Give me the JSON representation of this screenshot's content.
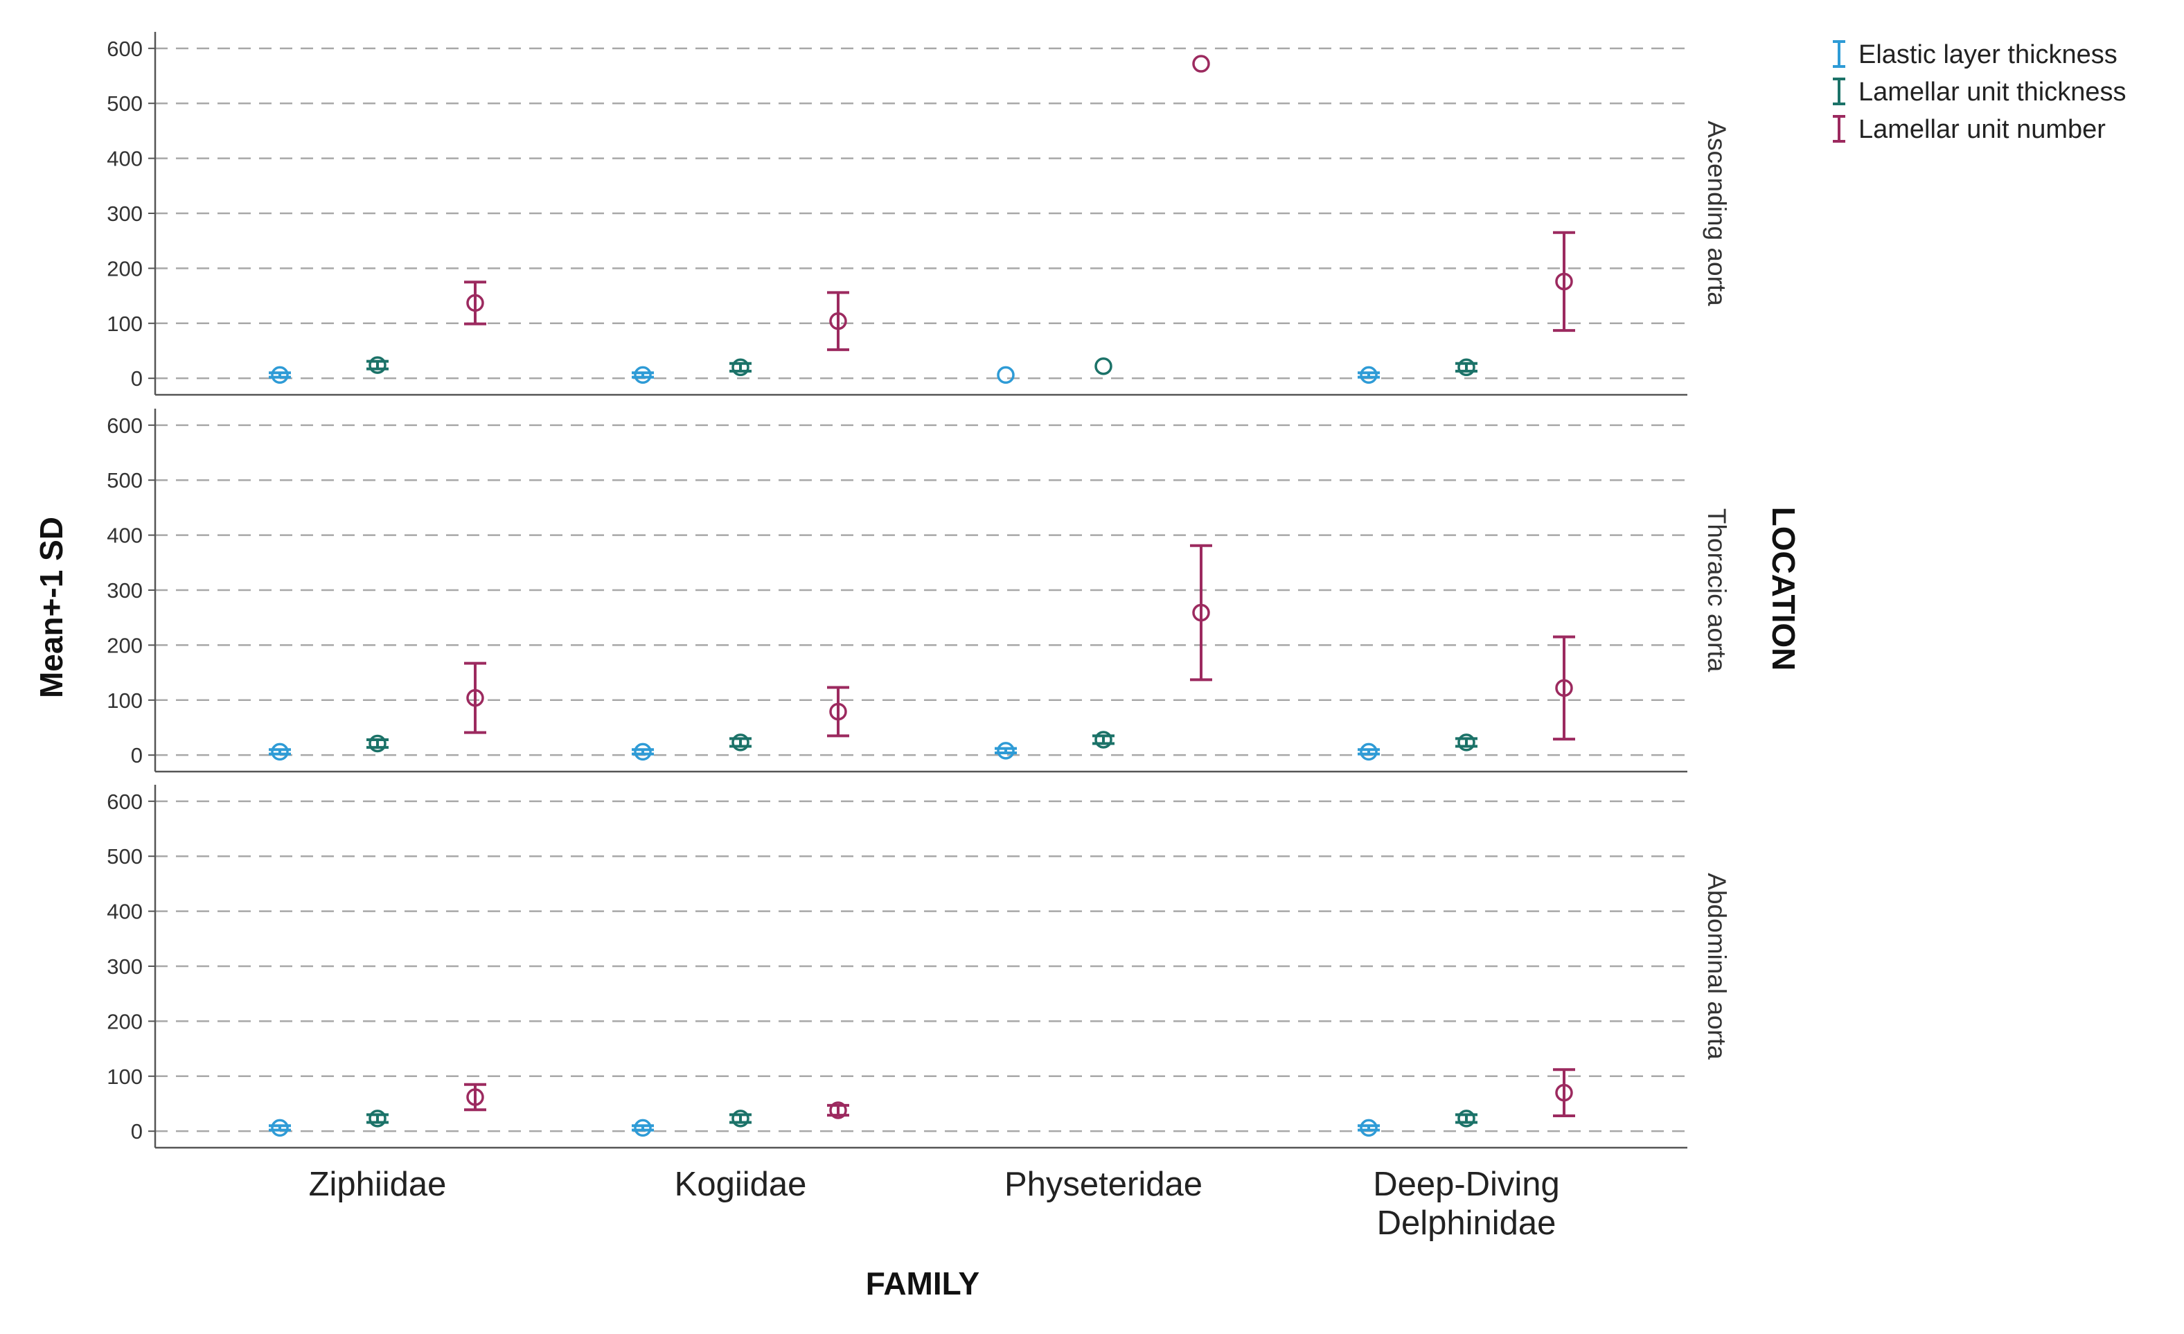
{
  "chart_data": {
    "type": "errorbar",
    "ylabel": "Mean+-1 SD",
    "xlabel": "FAMILY",
    "facet_label": "LOCATION",
    "categories": [
      "Ziphiidae",
      "Kogiidae",
      "Physeteridae",
      "Deep-Diving Delphinidae"
    ],
    "category_lines": [
      [
        "Ziphiidae"
      ],
      [
        "Kogiidae"
      ],
      [
        "Physeteridae"
      ],
      [
        "Deep-Diving",
        "Delphinidae"
      ]
    ],
    "yticks": [
      0,
      100,
      200,
      300,
      400,
      500,
      600
    ],
    "ylim": [
      -30,
      630
    ],
    "grid": "dashed horizontal",
    "legend_position": "top-right",
    "series": [
      {
        "name": "Elastic layer thickness",
        "color": "#2E9BD6"
      },
      {
        "name": "Lamellar unit thickness",
        "color": "#1B7268"
      },
      {
        "name": "Lamellar unit number",
        "color": "#9C2A5F"
      }
    ],
    "panels": [
      {
        "location": "Ascending aorta",
        "points": [
          [
            {
              "mean": 6,
              "sd": 4
            },
            {
              "mean": 24,
              "sd": 7
            },
            {
              "mean": 137,
              "sd": 38
            }
          ],
          [
            {
              "mean": 6,
              "sd": 4
            },
            {
              "mean": 20,
              "sd": 7
            },
            {
              "mean": 104,
              "sd": 52
            }
          ],
          [
            {
              "mean": 6,
              "sd": 0,
              "circle_color": "#2E9BD6"
            },
            {
              "mean": 22,
              "sd": 0,
              "circle_color": "#1B7268"
            },
            {
              "mean": 572,
              "sd": 0
            }
          ],
          [
            {
              "mean": 6,
              "sd": 4
            },
            {
              "mean": 20,
              "sd": 7
            },
            {
              "mean": 176,
              "sd": 89
            }
          ]
        ]
      },
      {
        "location": "Thoracic aorta",
        "points": [
          [
            {
              "mean": 6,
              "sd": 4
            },
            {
              "mean": 21,
              "sd": 7
            },
            {
              "mean": 104,
              "sd": 63
            }
          ],
          [
            {
              "mean": 6,
              "sd": 4
            },
            {
              "mean": 23,
              "sd": 7
            },
            {
              "mean": 79,
              "sd": 44
            }
          ],
          [
            {
              "mean": 8,
              "sd": 4
            },
            {
              "mean": 28,
              "sd": 7
            },
            {
              "mean": 259,
              "sd": 122
            }
          ],
          [
            {
              "mean": 6,
              "sd": 4
            },
            {
              "mean": 23,
              "sd": 7
            },
            {
              "mean": 122,
              "sd": 93
            }
          ]
        ]
      },
      {
        "location": "Abdominal aorta",
        "points": [
          [
            {
              "mean": 6,
              "sd": 4
            },
            {
              "mean": 23,
              "sd": 7
            },
            {
              "mean": 62,
              "sd": 23
            }
          ],
          [
            {
              "mean": 6,
              "sd": 4
            },
            {
              "mean": 23,
              "sd": 7
            },
            {
              "mean": 38,
              "sd": 9
            }
          ],
          [
            null,
            null,
            null
          ],
          [
            {
              "mean": 6,
              "sd": 4
            },
            {
              "mean": 23,
              "sd": 7
            },
            {
              "mean": 70,
              "sd": 42
            }
          ]
        ]
      }
    ]
  }
}
